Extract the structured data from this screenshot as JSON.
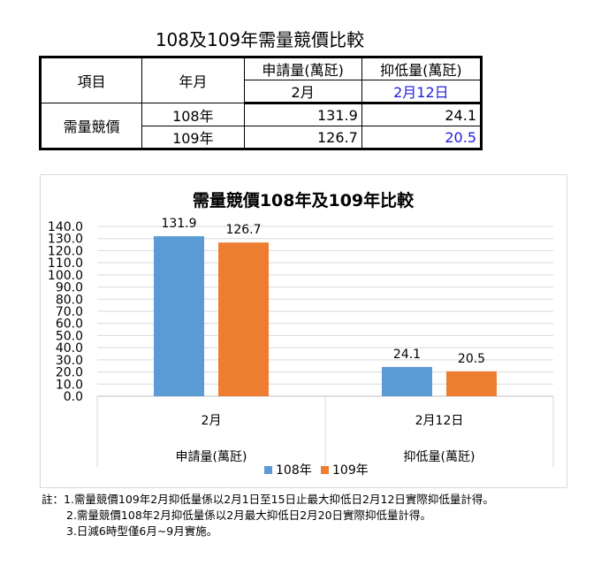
{
  "table": {
    "title": "108及109年需量競價比較",
    "headers": {
      "item": "項目",
      "year_month": "年月",
      "col_apply": "申請量(萬瓩)",
      "col_reduce": "抑低量(萬瓩)",
      "sub_apply": "2月",
      "sub_reduce": "2月12日"
    },
    "row_label": "需量競價",
    "rows": [
      {
        "year": "108年",
        "apply": "131.9",
        "reduce": "24.1"
      },
      {
        "year": "109年",
        "apply": "126.7",
        "reduce": "20.5"
      }
    ],
    "colors": {
      "highlight": "#1f1fe0"
    }
  },
  "chart_data": {
    "type": "bar",
    "title": "需量競價108年及109年比較",
    "categories": [
      {
        "label": "2月",
        "group": "申請量(萬瓩)"
      },
      {
        "label": "2月12日",
        "group": "抑低量(萬瓩)"
      }
    ],
    "series": [
      {
        "name": "108年",
        "color": "#5b9bd5",
        "values": [
          131.9,
          24.1
        ]
      },
      {
        "name": "109年",
        "color": "#ed7d31",
        "values": [
          126.7,
          20.5
        ]
      }
    ],
    "data_labels": [
      [
        "131.9",
        "24.1"
      ],
      [
        "126.7",
        "20.5"
      ]
    ],
    "ylim": [
      0,
      140
    ],
    "yticks": [
      "0.0",
      "10.0",
      "20.0",
      "30.0",
      "40.0",
      "50.0",
      "60.0",
      "70.0",
      "80.0",
      "90.0",
      "100.0",
      "110.0",
      "120.0",
      "130.0",
      "140.0"
    ],
    "grid": true,
    "legend_position": "bottom"
  },
  "notes": [
    "註：1.需量競價109年2月抑低量係以2月1日至15日止最大抑低日2月12日實際抑低量計得。",
    "2.需量競價108年2月抑低量係以2月最大抑低日2月20日實際抑低量計得。",
    "3.日減6時型僅6月~9月實施。"
  ]
}
